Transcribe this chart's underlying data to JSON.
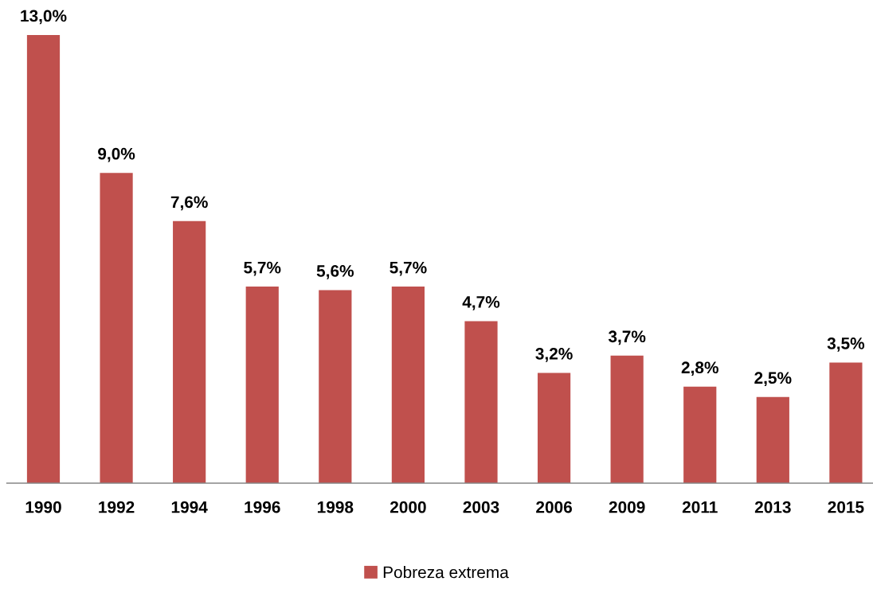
{
  "chart_data": {
    "type": "bar",
    "categories": [
      "1990",
      "1992",
      "1994",
      "1996",
      "1998",
      "2000",
      "2003",
      "2006",
      "2009",
      "2011",
      "2013",
      "2015"
    ],
    "series": [
      {
        "name": "Pobreza extrema",
        "color": "#c0504d",
        "values": [
          13.0,
          9.0,
          7.6,
          5.7,
          5.6,
          5.7,
          4.7,
          3.2,
          3.7,
          2.8,
          2.5,
          3.5
        ],
        "value_labels": [
          "13,0%",
          "9,0%",
          "7,6%",
          "5,7%",
          "5,6%",
          "5,7%",
          "4,7%",
          "3,2%",
          "3,7%",
          "2,8%",
          "2,5%",
          "3,5%"
        ]
      }
    ],
    "legend": "bottom",
    "grid": false
  }
}
